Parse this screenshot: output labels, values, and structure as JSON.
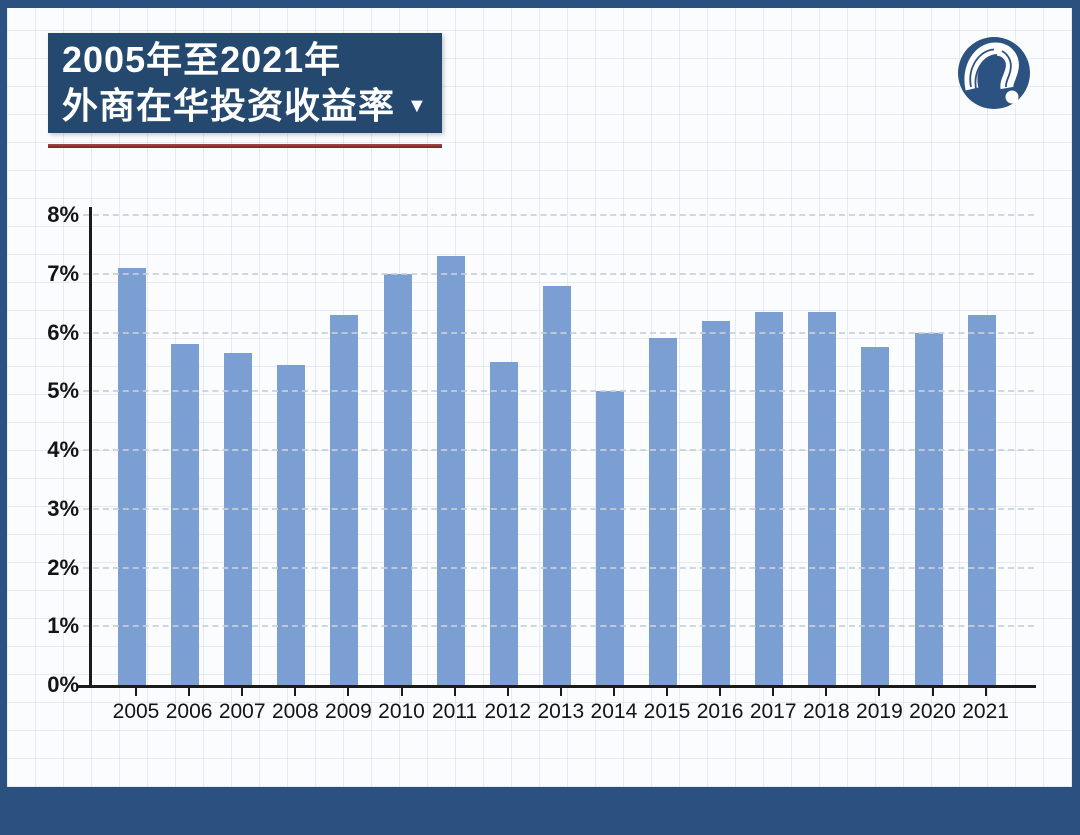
{
  "theme": {
    "frame_color": "#2b5181",
    "canvas_color": "#fbfcfd",
    "title_box_color": "#25486f",
    "underline_color": "#8e2c2c",
    "logo_color": "#2b5280",
    "bar_color": "#7b9fd2"
  },
  "header": {
    "title_line1": "2005年至2021年",
    "title_line2": "外商在华投资收益率",
    "dropdown_icon": "▼"
  },
  "chart_data": {
    "type": "bar",
    "title": "2005年至2021年外商在华投资收益率",
    "categories": [
      "2005",
      "2006",
      "2007",
      "2008",
      "2009",
      "2010",
      "2011",
      "2012",
      "2013",
      "2014",
      "2015",
      "2016",
      "2017",
      "2018",
      "2019",
      "2020",
      "2021"
    ],
    "values": [
      7.1,
      5.8,
      5.65,
      5.45,
      6.3,
      7.0,
      7.3,
      5.5,
      6.8,
      5.0,
      5.9,
      6.2,
      6.35,
      6.35,
      5.75,
      6.0,
      6.3
    ],
    "unit": "%",
    "xlabel": "",
    "ylabel": "",
    "ylim": [
      0,
      8
    ],
    "yticks": [
      "0%",
      "1%",
      "2%",
      "3%",
      "4%",
      "5%",
      "6%",
      "7%",
      "8%"
    ],
    "grid": "horizontal-dashed",
    "legend": "none"
  }
}
